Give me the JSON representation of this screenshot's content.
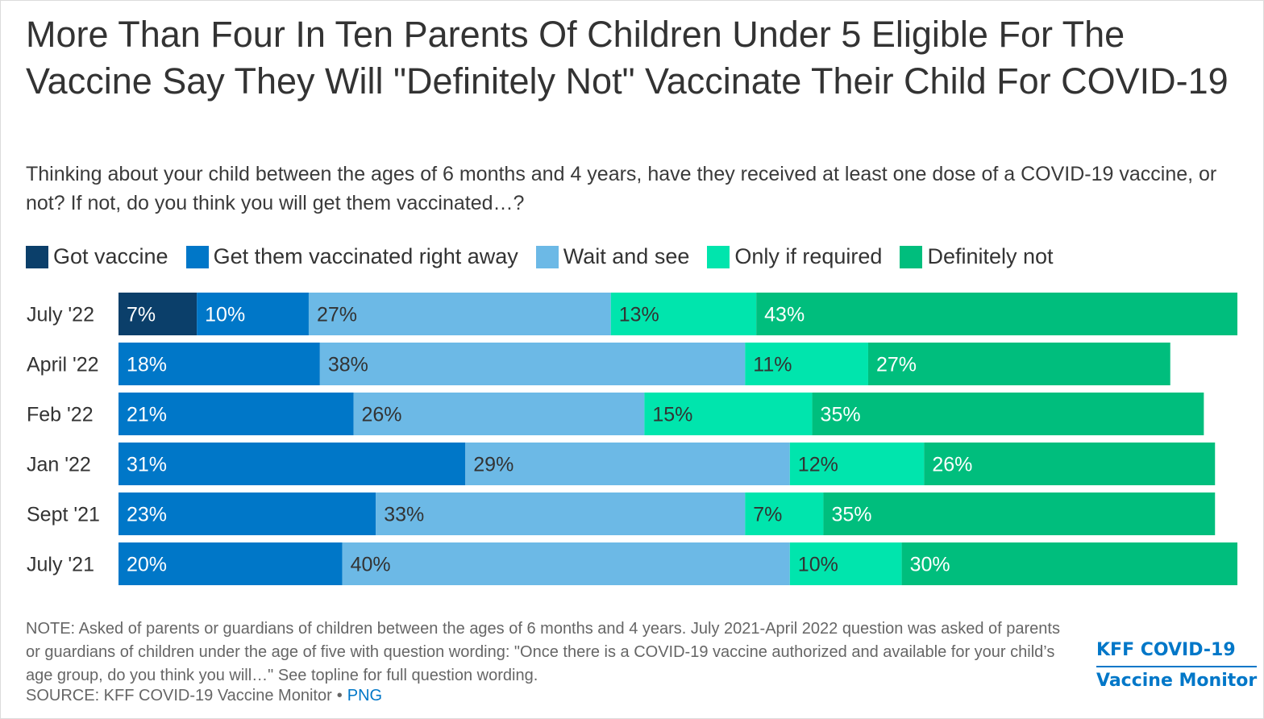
{
  "title": "More Than Four In Ten Parents Of Children Under 5 Eligible For The Vaccine Say They Will \"Definitely Not\" Vaccinate Their Child For COVID-19",
  "subtitle": "Thinking about your child between the ages of 6 months and 4 years, have they received at least one dose of a COVID-19 vaccine, or not? If not, do you think you will get them vaccinated…?",
  "legend": [
    {
      "label": "Got vaccine",
      "color": "#0b3f6a"
    },
    {
      "label": "Get them vaccinated right away",
      "color": "#0077c8"
    },
    {
      "label": "Wait and see",
      "color": "#6cb9e6"
    },
    {
      "label": "Only if required",
      "color": "#00e5ad"
    },
    {
      "label": "Definitely not",
      "color": "#00be7d"
    }
  ],
  "chart_data": {
    "type": "bar",
    "orientation": "horizontal",
    "stacked": true,
    "categories": [
      "July '22",
      "April '22",
      "Feb '22",
      "Jan '22",
      "Sept '21",
      "July '21"
    ],
    "series": [
      {
        "name": "Got vaccine",
        "color": "#0b3f6a",
        "label_color": "#ffffff",
        "values": [
          7,
          null,
          null,
          null,
          null,
          null
        ]
      },
      {
        "name": "Get them vaccinated right away",
        "color": "#0077c8",
        "label_color": "#ffffff",
        "values": [
          10,
          18,
          21,
          31,
          23,
          20
        ]
      },
      {
        "name": "Wait and see",
        "color": "#6cb9e6",
        "label_color": "#333333",
        "values": [
          27,
          38,
          26,
          29,
          33,
          40
        ]
      },
      {
        "name": "Only if required",
        "color": "#00e5ad",
        "label_color": "#333333",
        "values": [
          13,
          11,
          15,
          12,
          7,
          10
        ]
      },
      {
        "name": "Definitely not",
        "color": "#00be7d",
        "label_color": "#ffffff",
        "values": [
          43,
          27,
          35,
          26,
          35,
          30
        ]
      }
    ],
    "xlim": [
      0,
      100
    ],
    "value_suffix": "%",
    "grid": false,
    "legend_position": "top"
  },
  "note": "NOTE: Asked of parents or guardians of children between the ages of 6 months and 4 years. July 2021-April 2022 question was asked of parents or guardians of children under the age of five with question wording: \"Once there is a COVID-19 vaccine authorized and available for your child’s age group, do you think you will…\" See topline for full question wording.",
  "source": {
    "text": "SOURCE: KFF COVID-19 Vaccine Monitor",
    "separator": "•",
    "link": "PNG"
  },
  "logo": {
    "line1": "KFF COVID-19",
    "line2": "Vaccine Monitor"
  }
}
